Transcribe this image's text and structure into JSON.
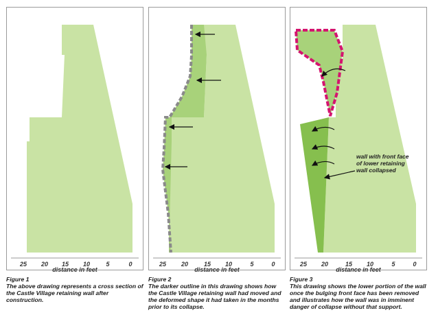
{
  "figures": [
    {
      "ticks": [
        "25",
        "20",
        "15",
        "10",
        "5",
        "0"
      ],
      "axis_label": "distance in feet",
      "caption_title": "Figure 1",
      "caption_body": "The above drawing represents a cross section of the Castle Village retaining wall after construction."
    },
    {
      "ticks": [
        "25",
        "20",
        "15",
        "10",
        "5",
        "0"
      ],
      "axis_label": "distance in feet",
      "caption_title": "Figure 2",
      "caption_body": "The darker outline in this drawing shows how the Castle Village retaining wall had moved and the deformed shape it had taken in the months prior to its collapse."
    },
    {
      "ticks": [
        "25",
        "20",
        "15",
        "10",
        "5",
        "0"
      ],
      "axis_label": "distance in feet",
      "caption_title": "Figure 3",
      "caption_body": "This drawing shows the lower portion of the wall once the bulging front face has been removed and illustrates how the wall was in imminent danger of collapse without that support.",
      "annotation": "wall with front face of lower retaining wall collapsed"
    }
  ],
  "colors": {
    "wall_light": "#c9e3a4",
    "wall_mid": "#a8d27a",
    "wall_dark": "#86bf4e",
    "outline_gray": "#8a8a8a",
    "outline_magenta": "#d4146f",
    "frame": "#9a9a9a"
  }
}
